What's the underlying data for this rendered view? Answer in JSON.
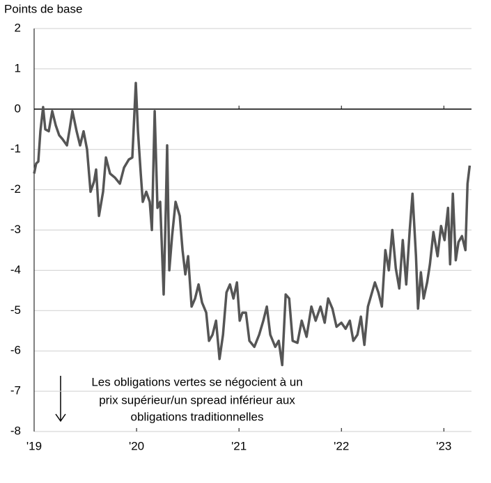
{
  "chart_data": {
    "type": "line",
    "ylabel": "Points de base",
    "annotation": [
      "Les obligations vertes se négocient à un",
      "prix supérieur/un spread inférieur aux",
      "obligations traditionnelles"
    ],
    "xlim": [
      2019,
      2023.27
    ],
    "xticks": [
      {
        "value": 2019,
        "label": "'19"
      },
      {
        "value": 2020,
        "label": "'20"
      },
      {
        "value": 2021,
        "label": "'21"
      },
      {
        "value": 2022,
        "label": "'22"
      },
      {
        "value": 2023,
        "label": "'23"
      }
    ],
    "ylim": [
      -8,
      2
    ],
    "yticks": [
      2,
      1,
      0,
      -1,
      -2,
      -3,
      -4,
      -5,
      -6,
      -7,
      -8
    ],
    "grid": true,
    "x": [
      2019.0,
      2019.02,
      2019.041,
      2019.061,
      2019.088,
      2019.109,
      2019.143,
      2019.177,
      2019.211,
      2019.245,
      2019.279,
      2019.32,
      2019.347,
      2019.374,
      2019.415,
      2019.449,
      2019.483,
      2019.517,
      2019.551,
      2019.585,
      2019.605,
      2019.633,
      2019.673,
      2019.701,
      2019.741,
      2019.789,
      2019.837,
      2019.878,
      2019.925,
      2019.959,
      2019.993,
      2020.014,
      2020.041,
      2020.061,
      2020.095,
      2020.129,
      2020.15,
      2020.177,
      2020.204,
      2020.231,
      2020.265,
      2020.286,
      2020.299,
      2020.32,
      2020.347,
      2020.381,
      2020.422,
      2020.449,
      2020.476,
      2020.503,
      2020.537,
      2020.571,
      2020.605,
      2020.639,
      2020.68,
      2020.707,
      2020.741,
      2020.776,
      2020.81,
      2020.844,
      2020.878,
      2020.912,
      2020.946,
      2020.98,
      2021.007,
      2021.034,
      2021.068,
      2021.102,
      2021.15,
      2021.197,
      2021.238,
      2021.272,
      2021.306,
      2021.354,
      2021.388,
      2021.422,
      2021.456,
      2021.49,
      2021.524,
      2021.571,
      2021.612,
      2021.66,
      2021.707,
      2021.748,
      2021.796,
      2021.837,
      2021.871,
      2021.912,
      2021.952,
      2022.0,
      2022.041,
      2022.082,
      2022.116,
      2022.156,
      2022.19,
      2022.224,
      2022.259,
      2022.293,
      2022.327,
      2022.361,
      2022.395,
      2022.429,
      2022.463,
      2022.497,
      2022.531,
      2022.565,
      2022.599,
      2022.633,
      2022.667,
      2022.694,
      2022.728,
      2022.748,
      2022.776,
      2022.803,
      2022.837,
      2022.864,
      2022.898,
      2022.939,
      2022.973,
      2023.007,
      2023.041,
      2023.061,
      2023.088,
      2023.116,
      2023.143,
      2023.177,
      2023.211,
      2023.231,
      2023.252
    ],
    "series": [
      {
        "color": "#555555",
        "values": [
          -1.6,
          -1.35,
          -1.3,
          -0.55,
          0.05,
          -0.5,
          -0.55,
          -0.05,
          -0.4,
          -0.65,
          -0.75,
          -0.9,
          -0.5,
          -0.05,
          -0.55,
          -0.9,
          -0.55,
          -1.0,
          -2.05,
          -1.8,
          -1.5,
          -2.65,
          -2.05,
          -1.2,
          -1.6,
          -1.7,
          -1.85,
          -1.45,
          -1.25,
          -1.2,
          0.65,
          -0.55,
          -1.6,
          -2.3,
          -2.05,
          -2.3,
          -3.0,
          -0.05,
          -2.45,
          -2.3,
          -4.6,
          -2.45,
          -0.9,
          -4.0,
          -3.15,
          -2.3,
          -2.65,
          -3.5,
          -4.1,
          -3.65,
          -4.9,
          -4.7,
          -4.35,
          -4.8,
          -5.05,
          -5.75,
          -5.6,
          -5.25,
          -6.2,
          -5.6,
          -4.55,
          -4.35,
          -4.7,
          -4.3,
          -5.25,
          -5.05,
          -5.05,
          -5.75,
          -5.9,
          -5.6,
          -5.25,
          -4.9,
          -5.6,
          -5.9,
          -5.75,
          -6.35,
          -4.6,
          -4.7,
          -5.75,
          -5.8,
          -5.25,
          -5.65,
          -4.9,
          -5.25,
          -4.9,
          -5.3,
          -4.7,
          -4.95,
          -5.4,
          -5.3,
          -5.45,
          -5.25,
          -5.75,
          -5.6,
          -5.15,
          -5.85,
          -4.9,
          -4.6,
          -4.3,
          -4.55,
          -4.9,
          -3.5,
          -4.0,
          -3.0,
          -3.95,
          -4.45,
          -3.25,
          -4.35,
          -3.0,
          -2.1,
          -3.65,
          -4.95,
          -4.05,
          -4.7,
          -4.3,
          -3.85,
          -3.05,
          -3.65,
          -2.9,
          -3.25,
          -2.45,
          -3.85,
          -2.1,
          -3.75,
          -3.3,
          -3.15,
          -3.5,
          -1.85,
          -1.4
        ]
      }
    ]
  }
}
